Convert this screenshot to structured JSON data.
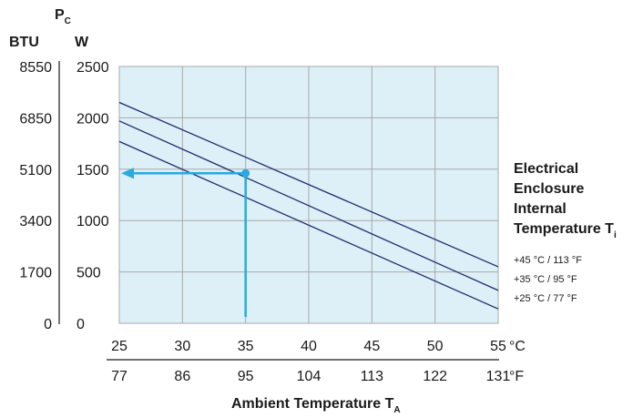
{
  "chart_data": {
    "type": "line",
    "y_axis": {
      "title": "P",
      "title_subscript": "C",
      "unit_left": "BTU",
      "unit_right": "W",
      "ticks_w": [
        0,
        500,
        1000,
        1500,
        2000,
        2500
      ],
      "ticks_btu": [
        "0",
        "1700",
        "3400",
        "5100",
        "6850",
        "8550"
      ],
      "ylim": [
        0,
        2500
      ]
    },
    "x_axis": {
      "title": "Ambient Temperature T",
      "title_subscript": "A",
      "ticks_c": [
        25,
        30,
        35,
        40,
        45,
        50,
        55
      ],
      "ticks_f": [
        "77",
        "86",
        "95",
        "104",
        "113",
        "122",
        "131"
      ],
      "unit_c": "°C",
      "unit_f": "°F",
      "xlim": [
        25,
        55
      ]
    },
    "grid": true,
    "legend_position": "right",
    "side_title_lines": [
      "Electrical",
      "Enclosure",
      "Internal",
      "Temperature T"
    ],
    "side_title_subscript": "i",
    "series": [
      {
        "name": "+45 °C / 113 °F",
        "x": [
          25,
          55
        ],
        "y": [
          2150,
          550
        ],
        "color": "#1f2a6e"
      },
      {
        "name": "+35 °C / 95 °F",
        "x": [
          25,
          55
        ],
        "y": [
          1970,
          320
        ],
        "color": "#1f2a6e"
      },
      {
        "name": "+25 °C / 77 °F",
        "x": [
          25,
          55
        ],
        "y": [
          1770,
          140
        ],
        "color": "#1f2a6e"
      }
    ],
    "annotation": {
      "point": {
        "x": 35,
        "y": 1460
      },
      "color": "#29a9e1"
    },
    "colors": {
      "plot_background": "#ddf0f8",
      "grid": "#a8a8a8",
      "axis": "#1a1a1a"
    }
  }
}
